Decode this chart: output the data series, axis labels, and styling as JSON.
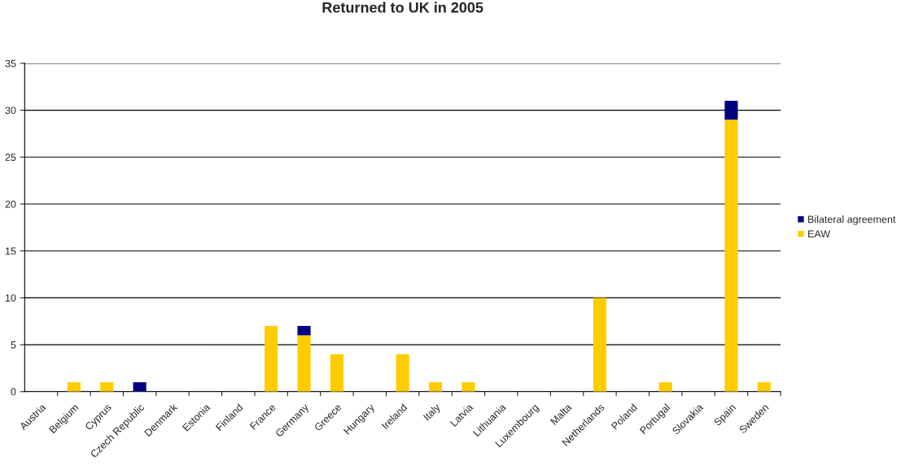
{
  "chart_data": {
    "type": "bar",
    "title": "Returned to UK in 2005",
    "stacked": true,
    "categories": [
      "Austria",
      "Belgium",
      "Cyprus",
      "Czech Republic",
      "Denmark",
      "Estonia",
      "Finland",
      "France",
      "Germany",
      "Greece",
      "Hungary",
      "Ireland",
      "Italy",
      "Latvia",
      "Lithuania",
      "Luxembourg",
      "Malta",
      "Netherlands",
      "Poland",
      "Portugal",
      "Slovakia",
      "Spain",
      "Sweden"
    ],
    "series": [
      {
        "name": "EAW",
        "color": "#ffcc00",
        "values": [
          0,
          1,
          1,
          0,
          0,
          0,
          0,
          7,
          6,
          4,
          0,
          4,
          1,
          1,
          0,
          0,
          0,
          10,
          0,
          1,
          0,
          29,
          1
        ]
      },
      {
        "name": "Bilateral agreement",
        "color": "#000080",
        "values": [
          0,
          0,
          0,
          1,
          0,
          0,
          0,
          0,
          1,
          0,
          0,
          0,
          0,
          0,
          0,
          0,
          0,
          0,
          0,
          0,
          0,
          2,
          0
        ]
      }
    ],
    "ylim": [
      0,
      35
    ],
    "yticks": [
      0,
      5,
      10,
      15,
      20,
      25,
      30,
      35
    ],
    "grid": "y",
    "legend": "right"
  }
}
